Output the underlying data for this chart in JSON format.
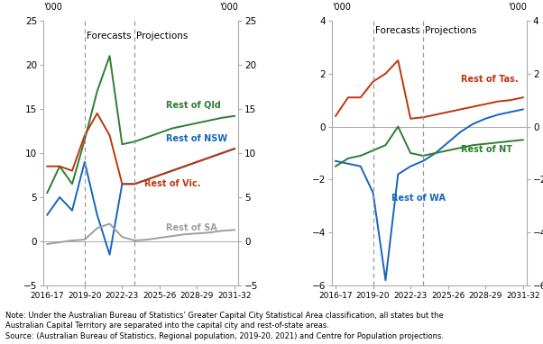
{
  "x_positions": [
    0,
    1,
    2,
    3,
    4,
    5,
    6,
    7,
    8,
    9,
    10,
    11,
    12,
    13,
    14,
    15
  ],
  "forecast_line": 3,
  "projection_line": 7,
  "left_chart": {
    "Rest of Qld": [
      5.5,
      8.5,
      6.5,
      11.5,
      17.0,
      21.0,
      11.0,
      11.3,
      11.8,
      12.3,
      12.8,
      13.1,
      13.4,
      13.7,
      14.0,
      14.2
    ],
    "Rest of NSW": [
      3.0,
      5.0,
      3.5,
      9.0,
      3.0,
      -1.5,
      6.5,
      6.5,
      7.0,
      7.5,
      8.0,
      8.5,
      9.0,
      9.5,
      10.0,
      10.5
    ],
    "Rest of Vic.": [
      8.5,
      8.5,
      8.0,
      12.0,
      14.5,
      12.0,
      6.5,
      6.5,
      7.0,
      7.5,
      8.0,
      8.5,
      9.0,
      9.5,
      10.0,
      10.5
    ],
    "Rest of SA": [
      -0.3,
      -0.1,
      0.1,
      0.2,
      1.5,
      2.0,
      0.5,
      0.1,
      0.2,
      0.4,
      0.6,
      0.8,
      0.9,
      1.0,
      1.2,
      1.3
    ],
    "colors": {
      "Rest of Qld": "#2E7D32",
      "Rest of NSW": "#1565C0",
      "Rest of Vic.": "#BF360C",
      "Rest of SA": "#9E9E9E"
    },
    "ylim": [
      -5,
      25
    ],
    "yticks": [
      -5,
      0,
      5,
      10,
      15,
      20,
      25
    ],
    "label_positions": {
      "Rest of Qld": [
        9.5,
        15.2
      ],
      "Rest of NSW": [
        9.5,
        11.3
      ],
      "Rest of Vic.": [
        7.8,
        6.2
      ],
      "Rest of SA": [
        9.5,
        1.2
      ]
    }
  },
  "right_chart": {
    "Rest of Tas.": [
      0.4,
      1.1,
      1.1,
      1.7,
      2.0,
      2.5,
      0.3,
      0.35,
      0.45,
      0.55,
      0.65,
      0.75,
      0.85,
      0.95,
      1.0,
      1.1
    ],
    "Rest of WA": [
      -1.3,
      -1.4,
      -1.5,
      -2.5,
      -5.8,
      -1.8,
      -1.5,
      -1.3,
      -1.0,
      -0.6,
      -0.2,
      0.1,
      0.3,
      0.45,
      0.55,
      0.65
    ],
    "Rest of NT": [
      -1.5,
      -1.2,
      -1.1,
      -0.9,
      -0.7,
      0.0,
      -1.0,
      -1.1,
      -1.0,
      -0.9,
      -0.8,
      -0.7,
      -0.65,
      -0.6,
      -0.55,
      -0.5
    ],
    "colors": {
      "Rest of Tas.": "#BF360C",
      "Rest of WA": "#1565C0",
      "Rest of NT": "#2E7D32"
    },
    "ylim": [
      -6,
      4
    ],
    "yticks": [
      -6,
      -4,
      -2,
      0,
      2,
      4
    ],
    "label_positions": {
      "Rest of Tas.": [
        10.0,
        1.7
      ],
      "Rest of WA": [
        4.5,
        -2.8
      ],
      "Rest of NT": [
        10.0,
        -0.95
      ]
    }
  },
  "tick_labels_show": [
    "2016-17",
    "2019-20",
    "2022-23",
    "2025-26",
    "2028-29",
    "2031-32"
  ],
  "tick_positions_show": [
    0,
    3,
    6,
    9,
    12,
    15
  ],
  "note_text": "Note: Under the Australian Bureau of Statistics’ Greater Capital City Statistical Area classification, all states but the\nAustralian Capital Territory are separated into the capital city and rest-of-state areas.\nSource: (Australian Bureau of Statistics, Regional population, 2019-20, 2021) and Centre for Population projections.",
  "background_color": "#FFFFFF"
}
